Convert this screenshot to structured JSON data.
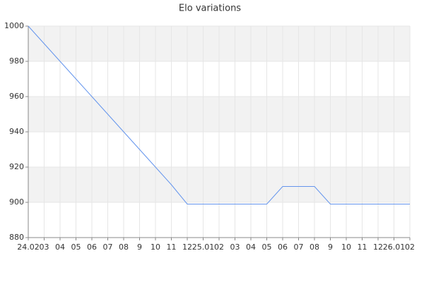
{
  "chart_data": {
    "type": "line",
    "title": "Elo variations",
    "categories": [
      "24.02",
      "03",
      "04",
      "05",
      "06",
      "07",
      "08",
      "9",
      "10",
      "11",
      "12",
      "25.01",
      "02",
      "03",
      "04",
      "05",
      "06",
      "07",
      "08",
      "9",
      "10",
      "11",
      "12",
      "26.01",
      "02"
    ],
    "series": [
      {
        "name": "Elo",
        "color": "#6495ed",
        "values": [
          1000,
          990,
          980,
          970,
          960,
          950,
          940,
          930,
          920,
          910,
          899,
          899,
          899,
          899,
          899,
          899,
          909,
          909,
          909,
          899,
          899,
          899,
          899,
          899,
          899
        ]
      }
    ],
    "ylim": [
      880,
      1000
    ],
    "yticks": [
      880,
      900,
      920,
      940,
      960,
      980,
      1000
    ],
    "grid": true
  }
}
